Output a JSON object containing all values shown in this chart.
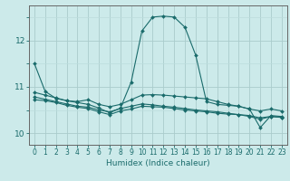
{
  "title": "",
  "xlabel": "Humidex (Indice chaleur)",
  "background_color": "#cceaea",
  "grid_color_major": "#aacccc",
  "grid_color_minor": "#bbdddd",
  "line_color": "#1a6b6b",
  "xlim": [
    -0.5,
    23.5
  ],
  "ylim": [
    9.75,
    12.75
  ],
  "yticks": [
    10,
    11,
    12
  ],
  "xticks": [
    0,
    1,
    2,
    3,
    4,
    5,
    6,
    7,
    8,
    9,
    10,
    11,
    12,
    13,
    14,
    15,
    16,
    17,
    18,
    19,
    20,
    21,
    22,
    23
  ],
  "series": [
    [
      11.5,
      10.9,
      10.75,
      10.7,
      10.68,
      10.72,
      10.62,
      10.57,
      10.62,
      10.72,
      10.82,
      10.83,
      10.82,
      10.8,
      10.78,
      10.76,
      10.74,
      10.68,
      10.62,
      10.58,
      10.52,
      10.48,
      10.52,
      10.48
    ],
    [
      10.88,
      10.82,
      10.76,
      10.7,
      10.66,
      10.62,
      10.54,
      10.44,
      10.54,
      11.1,
      12.2,
      12.5,
      12.52,
      12.5,
      12.28,
      11.68,
      10.68,
      10.62,
      10.6,
      10.58,
      10.52,
      10.12,
      10.38,
      10.36
    ],
    [
      10.72,
      10.7,
      10.66,
      10.6,
      10.56,
      10.53,
      10.46,
      10.4,
      10.48,
      10.52,
      10.58,
      10.57,
      10.56,
      10.53,
      10.5,
      10.48,
      10.46,
      10.43,
      10.41,
      10.4,
      10.36,
      10.3,
      10.36,
      10.34
    ],
    [
      10.78,
      10.73,
      10.68,
      10.63,
      10.58,
      10.56,
      10.5,
      10.46,
      10.53,
      10.58,
      10.63,
      10.61,
      10.58,
      10.56,
      10.53,
      10.5,
      10.48,
      10.46,
      10.43,
      10.4,
      10.38,
      10.33,
      10.36,
      10.34
    ]
  ]
}
